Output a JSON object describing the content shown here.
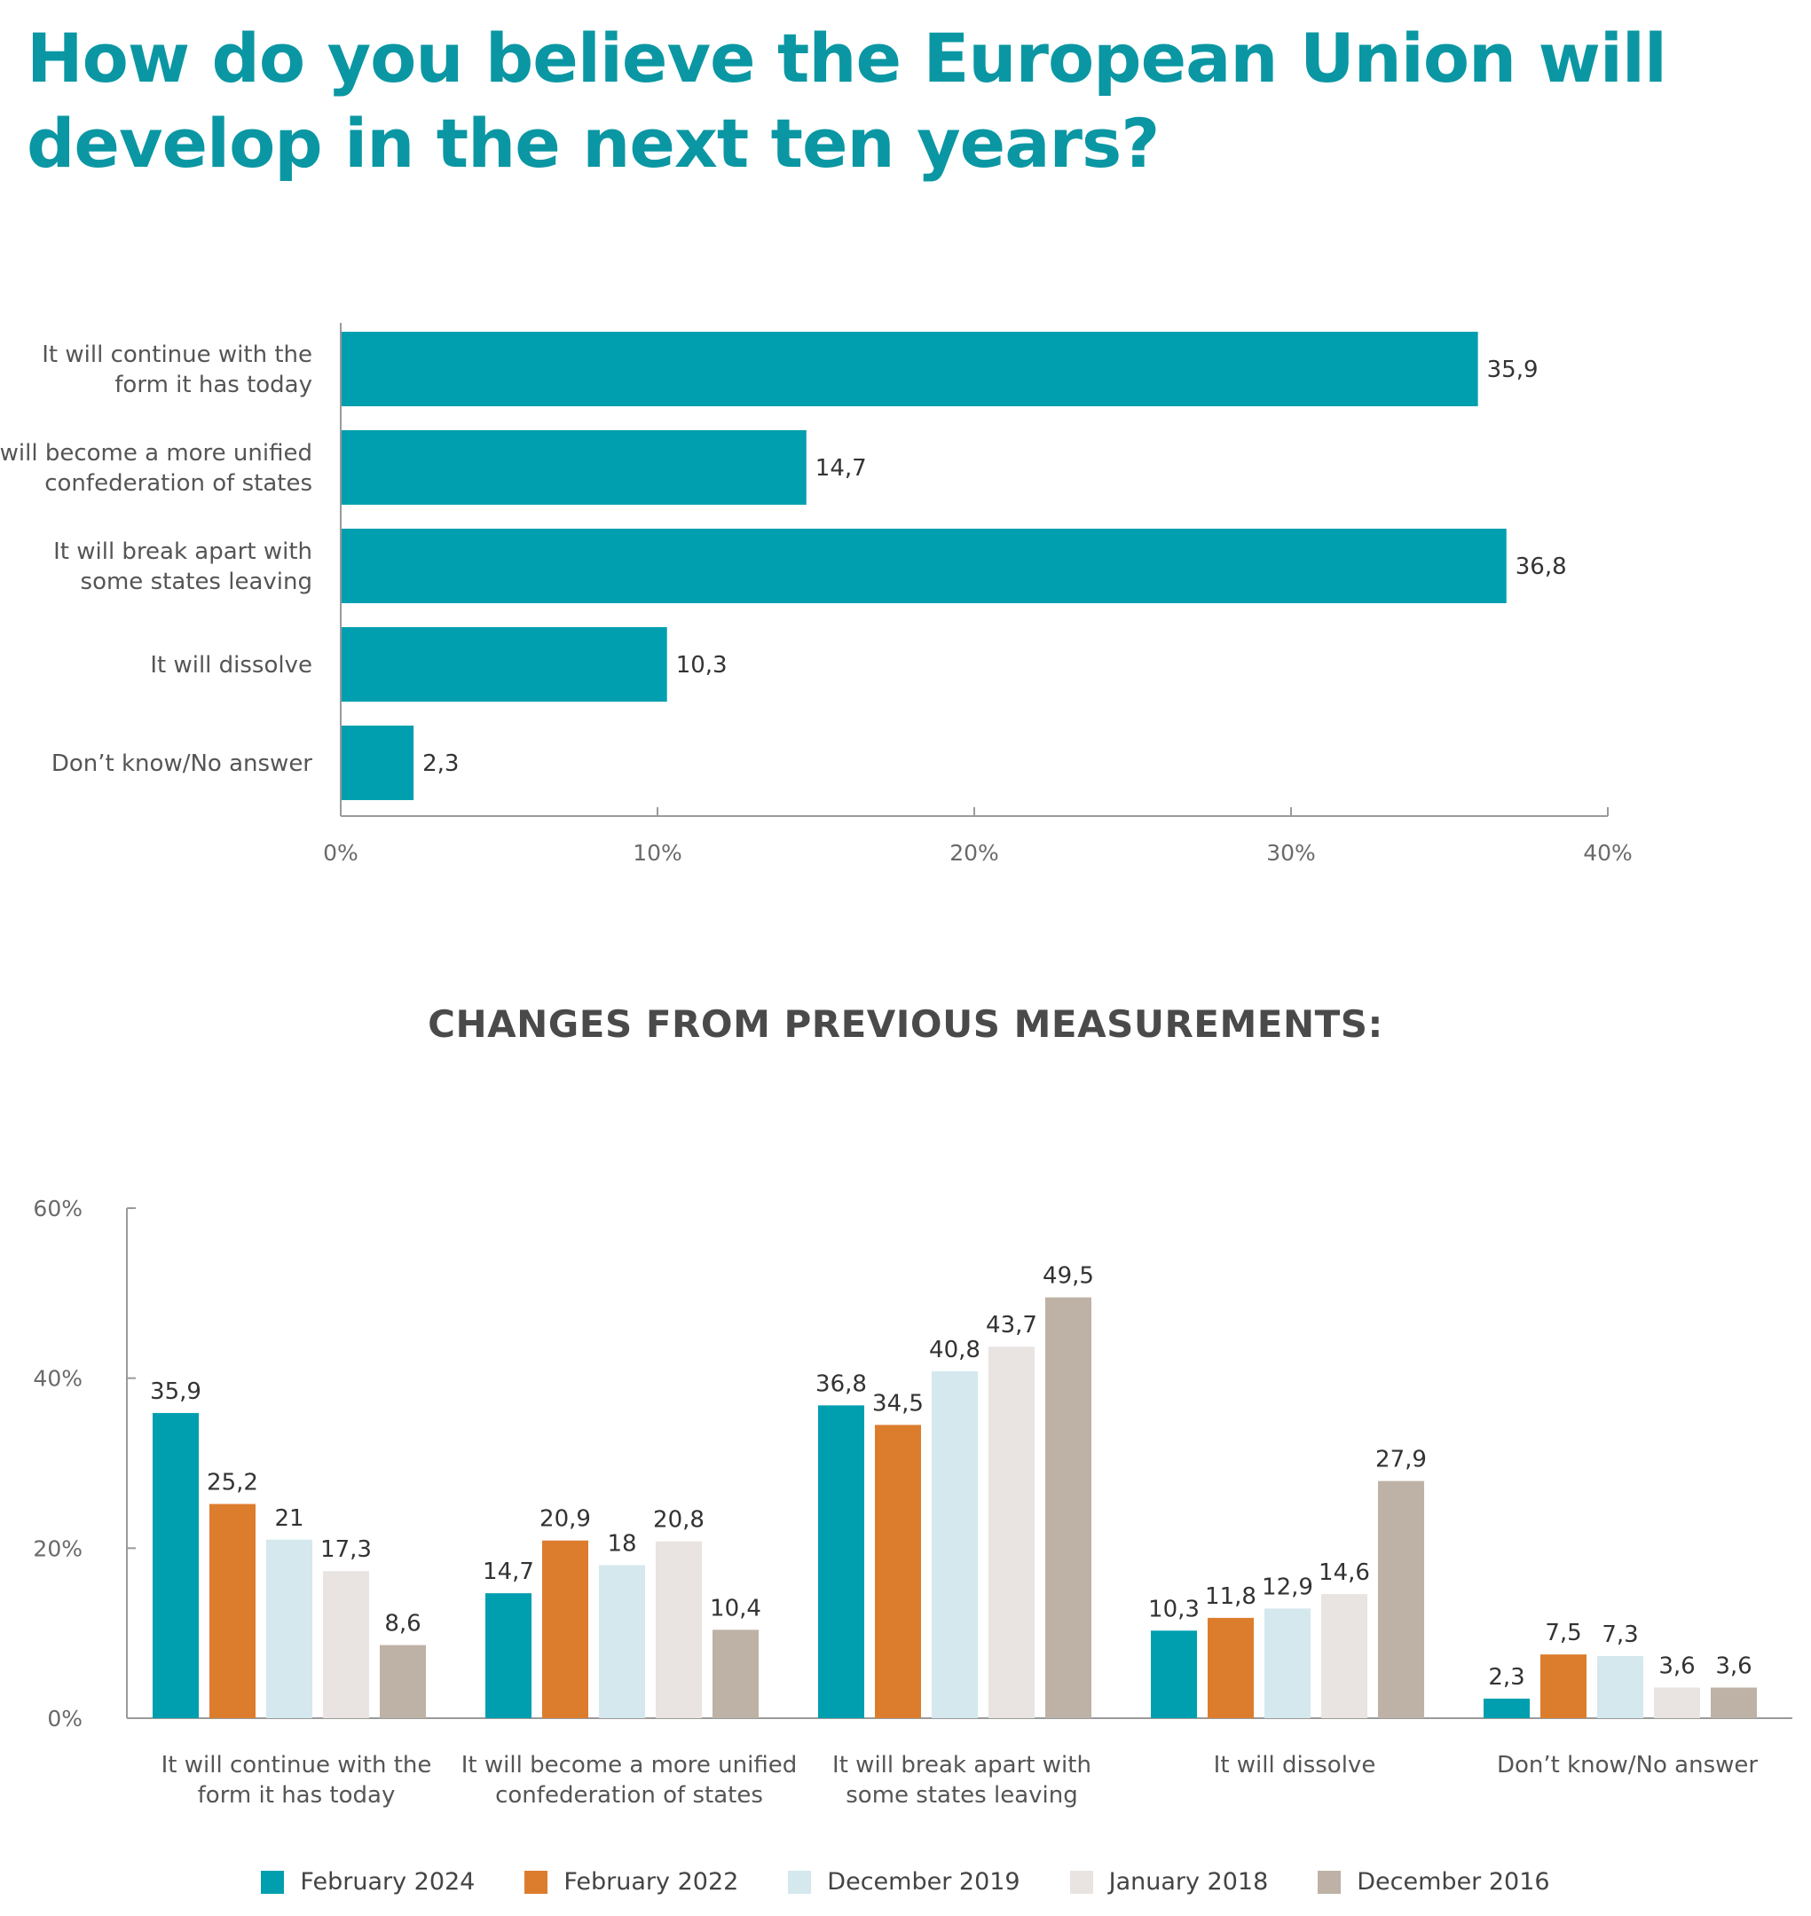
{
  "title": "How do you believe the European Union will develop in the next ten years?",
  "subtitle": "CHANGES FROM PREVIOUS MEASUREMENTS:",
  "chart_data": [
    {
      "type": "bar",
      "orientation": "horizontal",
      "categories": [
        [
          "It will continue with the",
          "form it has today"
        ],
        [
          "It will become a more unified",
          "confederation of states"
        ],
        [
          "It will break apart with",
          "some states leaving"
        ],
        [
          "It will dissolve"
        ],
        [
          "Don’t know/No answer"
        ]
      ],
      "values": [
        35.9,
        14.7,
        36.8,
        10.3,
        2.3
      ],
      "value_labels": [
        "35,9",
        "14,7",
        "36,8",
        "10,3",
        "2,3"
      ],
      "xlim": [
        0,
        40
      ],
      "ticks": [
        0,
        10,
        20,
        30,
        40
      ],
      "tick_labels": [
        "0%",
        "10%",
        "20%",
        "30%",
        "40%"
      ],
      "color": "#009faf",
      "grid": false
    },
    {
      "type": "bar",
      "orientation": "vertical",
      "categories": [
        [
          "It will continue with the",
          "form it has today"
        ],
        [
          "It will become a more unified",
          "confederation of states"
        ],
        [
          "It will break apart with",
          "some states leaving"
        ],
        [
          "It will dissolve"
        ],
        [
          "Don’t know/No answer"
        ]
      ],
      "series": [
        {
          "name": "February 2024",
          "color": "#009faf",
          "values": [
            35.9,
            14.7,
            36.8,
            10.3,
            2.3
          ],
          "labels": [
            "35,9",
            "14,7",
            "36,8",
            "10,3",
            "2,3"
          ]
        },
        {
          "name": "February 2022",
          "color": "#dc7d2e",
          "values": [
            25.2,
            20.9,
            34.5,
            11.8,
            7.5
          ],
          "labels": [
            "25,2",
            "20,9",
            "34,5",
            "11,8",
            "7,5"
          ]
        },
        {
          "name": "December 2019",
          "color": "#d4e8ee",
          "values": [
            21,
            18,
            40.8,
            12.9,
            7.3
          ],
          "labels": [
            "21",
            "18",
            "40,8",
            "12,9",
            "7,3"
          ]
        },
        {
          "name": "January 2018",
          "color": "#e9e4e1",
          "values": [
            17.3,
            20.8,
            43.7,
            14.6,
            3.6
          ],
          "labels": [
            "17,3",
            "20,8",
            "43,7",
            "14,6",
            "3,6"
          ]
        },
        {
          "name": "December 2016",
          "color": "#bdb2a5",
          "values": [
            8.6,
            10.4,
            49.5,
            27.9,
            3.6
          ],
          "labels": [
            "8,6",
            "10,4",
            "49,5",
            "27,9",
            "3,6"
          ]
        }
      ],
      "ylim": [
        0,
        60
      ],
      "ticks": [
        0,
        20,
        40,
        60
      ],
      "tick_labels": [
        "0%",
        "20%",
        "40%",
        "60%"
      ],
      "legend_position": "bottom",
      "grid": false
    }
  ]
}
